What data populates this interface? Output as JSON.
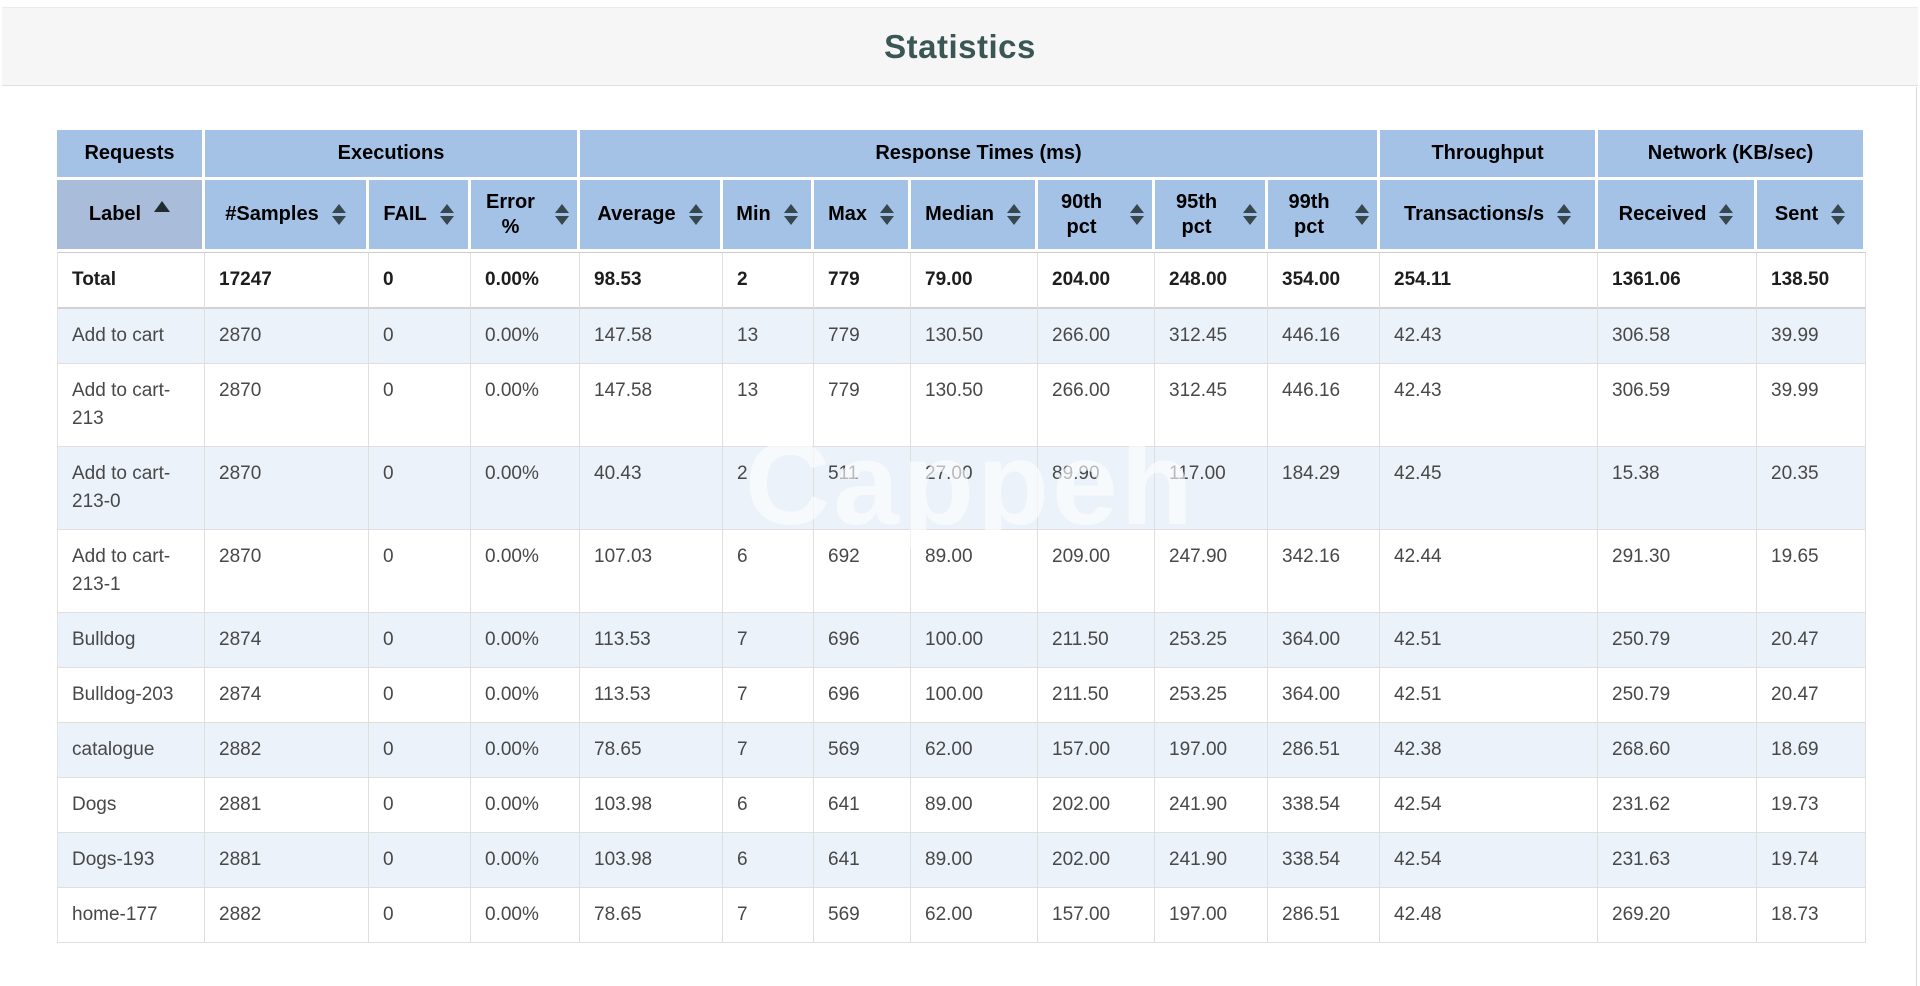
{
  "page": {
    "title": "Statistics"
  },
  "watermark": "Cappeh",
  "colors": {
    "header_bg": "#a4c2e6",
    "header_sorted_bg": "#a9bcd9",
    "row_stripe": "#ebf2f9",
    "title_text": "#3a5755"
  },
  "table": {
    "groups": [
      {
        "label": "Requests",
        "span": 1
      },
      {
        "label": "Executions",
        "span": 3
      },
      {
        "label": "Response Times (ms)",
        "span": 7
      },
      {
        "label": "Throughput",
        "span": 1
      },
      {
        "label": "Network (KB/sec)",
        "span": 2
      }
    ],
    "columns": [
      {
        "label": "Label",
        "sort": "asc"
      },
      {
        "label": "#Samples",
        "sort": "both"
      },
      {
        "label": "FAIL",
        "sort": "both"
      },
      {
        "label": "Error %",
        "sort": "both"
      },
      {
        "label": "Average",
        "sort": "both"
      },
      {
        "label": "Min",
        "sort": "both"
      },
      {
        "label": "Max",
        "sort": "both"
      },
      {
        "label": "Median",
        "sort": "both"
      },
      {
        "label": "90th pct",
        "sort": "both"
      },
      {
        "label": "95th pct",
        "sort": "both"
      },
      {
        "label": "99th pct",
        "sort": "both"
      },
      {
        "label": "Transactions/s",
        "sort": "both"
      },
      {
        "label": "Received",
        "sort": "both"
      },
      {
        "label": "Sent",
        "sort": "both"
      }
    ],
    "rows": [
      {
        "bold": true,
        "cells": [
          "Total",
          "17247",
          "0",
          "0.00%",
          "98.53",
          "2",
          "779",
          "79.00",
          "204.00",
          "248.00",
          "354.00",
          "254.11",
          "1361.06",
          "138.50"
        ]
      },
      {
        "bold": false,
        "cells": [
          "Add to cart",
          "2870",
          "0",
          "0.00%",
          "147.58",
          "13",
          "779",
          "130.50",
          "266.00",
          "312.45",
          "446.16",
          "42.43",
          "306.58",
          "39.99"
        ]
      },
      {
        "bold": false,
        "cells": [
          "Add to cart-213",
          "2870",
          "0",
          "0.00%",
          "147.58",
          "13",
          "779",
          "130.50",
          "266.00",
          "312.45",
          "446.16",
          "42.43",
          "306.59",
          "39.99"
        ]
      },
      {
        "bold": false,
        "cells": [
          "Add to cart-213-0",
          "2870",
          "0",
          "0.00%",
          "40.43",
          "2",
          "511",
          "27.00",
          "89.90",
          "117.00",
          "184.29",
          "42.45",
          "15.38",
          "20.35"
        ]
      },
      {
        "bold": false,
        "cells": [
          "Add to cart-213-1",
          "2870",
          "0",
          "0.00%",
          "107.03",
          "6",
          "692",
          "89.00",
          "209.00",
          "247.90",
          "342.16",
          "42.44",
          "291.30",
          "19.65"
        ]
      },
      {
        "bold": false,
        "cells": [
          "Bulldog",
          "2874",
          "0",
          "0.00%",
          "113.53",
          "7",
          "696",
          "100.00",
          "211.50",
          "253.25",
          "364.00",
          "42.51",
          "250.79",
          "20.47"
        ]
      },
      {
        "bold": false,
        "cells": [
          "Bulldog-203",
          "2874",
          "0",
          "0.00%",
          "113.53",
          "7",
          "696",
          "100.00",
          "211.50",
          "253.25",
          "364.00",
          "42.51",
          "250.79",
          "20.47"
        ]
      },
      {
        "bold": false,
        "cells": [
          "catalogue",
          "2882",
          "0",
          "0.00%",
          "78.65",
          "7",
          "569",
          "62.00",
          "157.00",
          "197.00",
          "286.51",
          "42.38",
          "268.60",
          "18.69"
        ]
      },
      {
        "bold": false,
        "cells": [
          "Dogs",
          "2881",
          "0",
          "0.00%",
          "103.98",
          "6",
          "641",
          "89.00",
          "202.00",
          "241.90",
          "338.54",
          "42.54",
          "231.62",
          "19.73"
        ]
      },
      {
        "bold": false,
        "cells": [
          "Dogs-193",
          "2881",
          "0",
          "0.00%",
          "103.98",
          "6",
          "641",
          "89.00",
          "202.00",
          "241.90",
          "338.54",
          "42.54",
          "231.63",
          "19.74"
        ]
      },
      {
        "bold": false,
        "cells": [
          "home-177",
          "2882",
          "0",
          "0.00%",
          "78.65",
          "7",
          "569",
          "62.00",
          "157.00",
          "197.00",
          "286.51",
          "42.48",
          "269.20",
          "18.73"
        ]
      }
    ]
  }
}
